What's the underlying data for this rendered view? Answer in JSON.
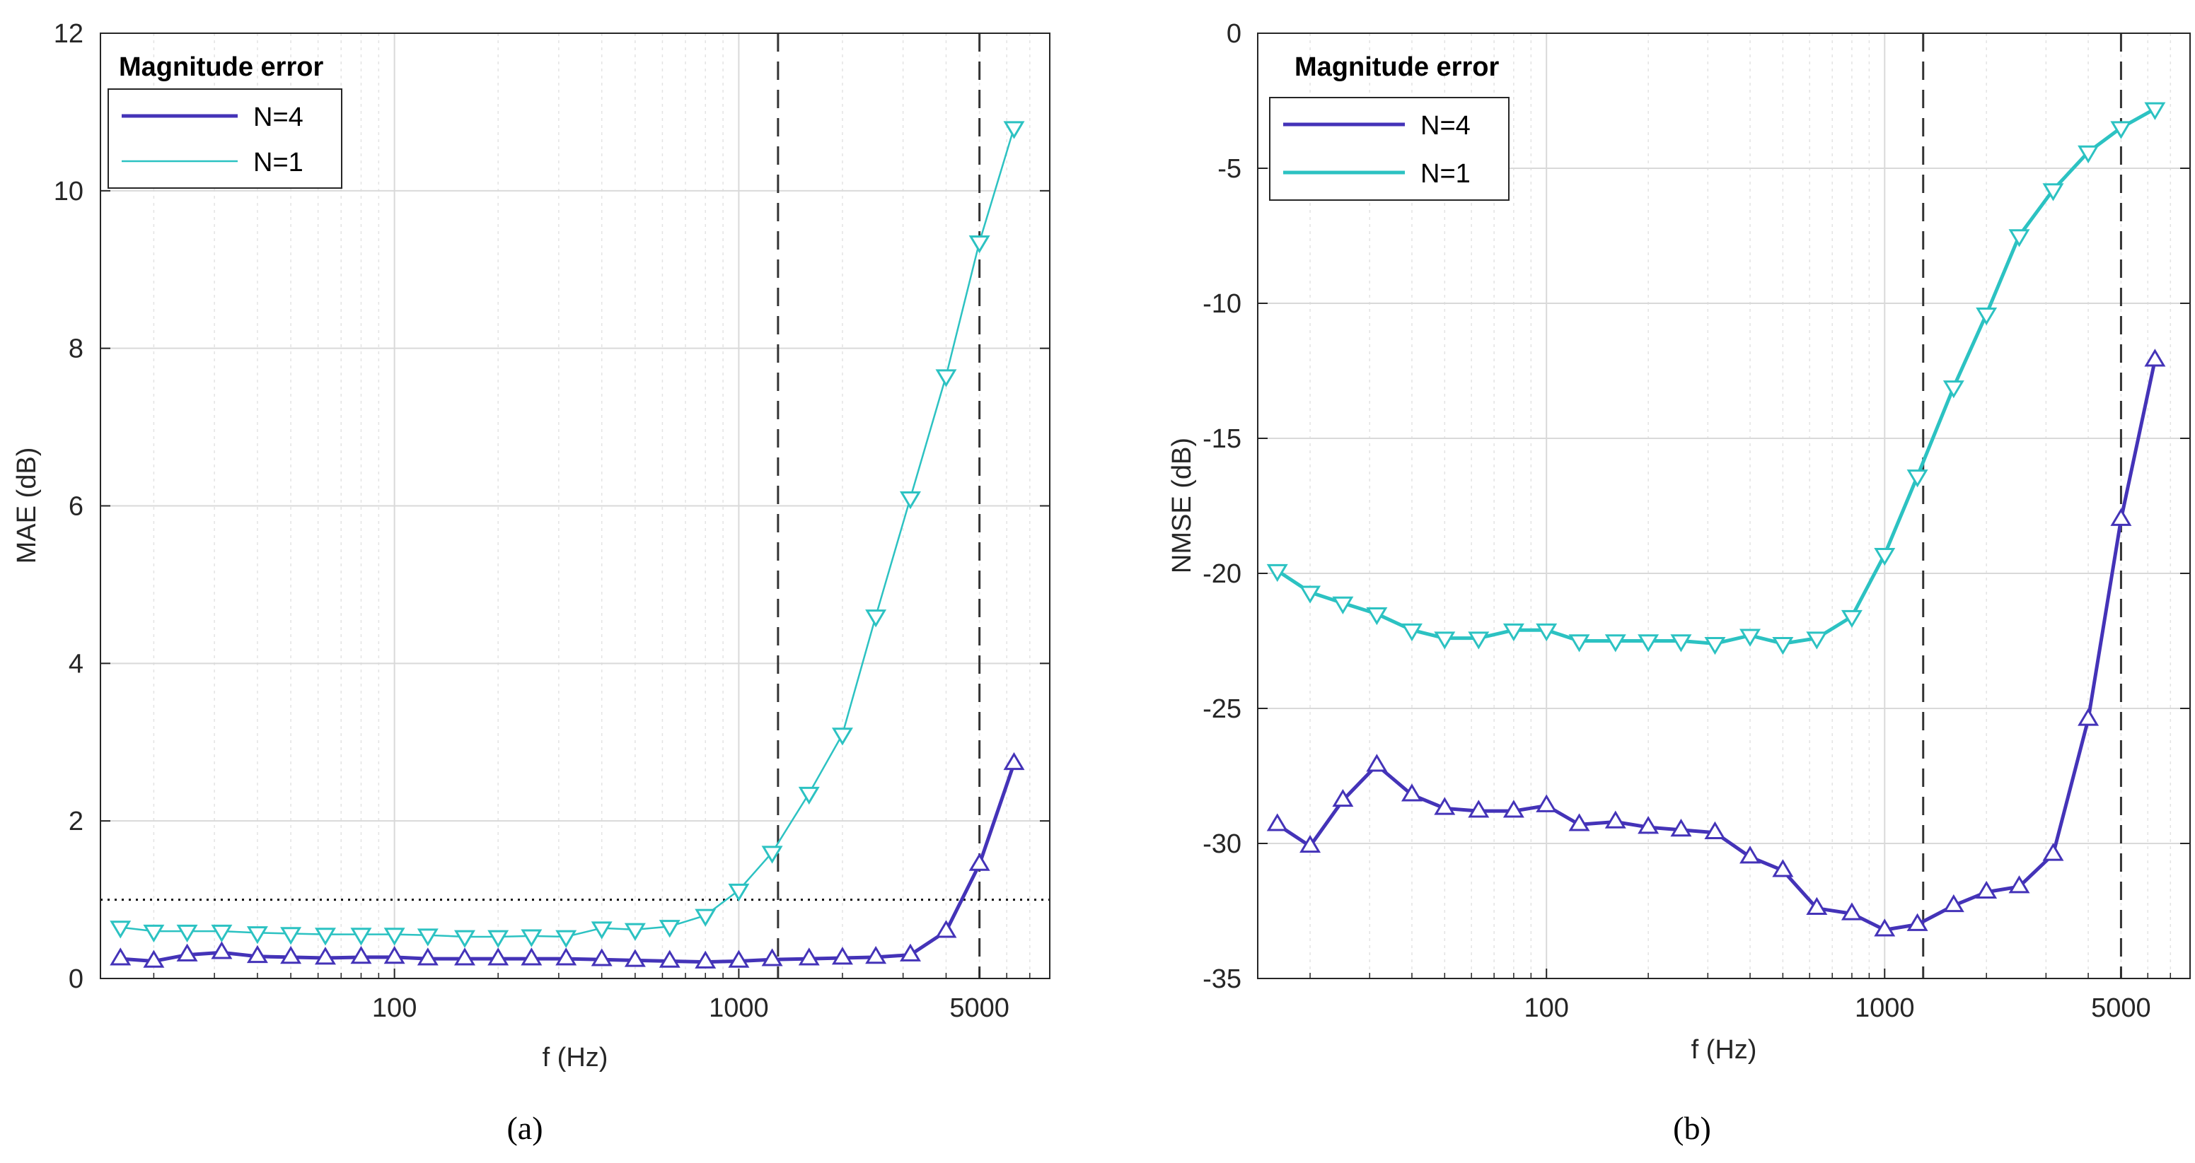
{
  "colors": {
    "n4": "#4433b8",
    "n1": "#2cc2c2",
    "ref_line": "#333333",
    "grid_major": "#d9d9d9",
    "grid_minor": "#e3e3e3",
    "axis": "#262626"
  },
  "chart_data": [
    {
      "type": "line",
      "panel_label": "(a)",
      "legend_title": "Magnitude error",
      "legend_position": "top-left",
      "xlabel": "f (Hz)",
      "ylabel": "MAE (dB)",
      "xscale": "log",
      "xlim": [
        14,
        8000
      ],
      "ylim": [
        0,
        12
      ],
      "xticks": [
        100,
        1000,
        5000
      ],
      "xtick_labels": [
        "100",
        "1000",
        "5000"
      ],
      "yticks": [
        0,
        2,
        4,
        6,
        8,
        10,
        12
      ],
      "ytick_labels": [
        "0",
        "2",
        "4",
        "6",
        "8",
        "10",
        "12"
      ],
      "grid": true,
      "vlines": [
        1300,
        5000
      ],
      "hline": 1,
      "series": [
        {
          "name": "N=4",
          "marker": "triangle-up",
          "x": [
            16,
            20,
            25,
            31.5,
            40,
            50,
            63,
            80,
            100,
            125,
            160,
            200,
            250,
            315,
            400,
            500,
            630,
            800,
            1000,
            1250,
            1600,
            2000,
            2500,
            3150,
            4000,
            5000,
            6300
          ],
          "values": [
            0.25,
            0.22,
            0.3,
            0.33,
            0.28,
            0.27,
            0.26,
            0.27,
            0.27,
            0.25,
            0.25,
            0.25,
            0.25,
            0.25,
            0.24,
            0.23,
            0.22,
            0.21,
            0.22,
            0.24,
            0.25,
            0.26,
            0.27,
            0.3,
            0.6,
            1.45,
            2.73
          ]
        },
        {
          "name": "N=1",
          "marker": "triangle-down",
          "x": [
            16,
            20,
            25,
            31.5,
            40,
            50,
            63,
            80,
            100,
            125,
            160,
            200,
            250,
            315,
            400,
            500,
            630,
            800,
            1000,
            1250,
            1600,
            2000,
            2500,
            3150,
            4000,
            5000,
            6300
          ],
          "values": [
            0.65,
            0.6,
            0.6,
            0.6,
            0.58,
            0.57,
            0.56,
            0.56,
            0.56,
            0.55,
            0.53,
            0.53,
            0.54,
            0.53,
            0.64,
            0.62,
            0.66,
            0.8,
            1.12,
            1.6,
            2.35,
            3.1,
            4.6,
            6.1,
            7.65,
            9.35,
            10.8
          ]
        }
      ]
    },
    {
      "type": "line",
      "panel_label": "(b)",
      "legend_title": "Magnitude error",
      "legend_position": "top-left",
      "xlabel": "f (Hz)",
      "ylabel": "NMSE (dB)",
      "xscale": "log",
      "xlim": [
        14,
        8000
      ],
      "ylim": [
        -35,
        0
      ],
      "xticks": [
        100,
        1000,
        5000
      ],
      "xtick_labels": [
        "100",
        "1000",
        "5000"
      ],
      "yticks": [
        0,
        -5,
        -10,
        -15,
        -20,
        -25,
        -30,
        -35
      ],
      "ytick_labels": [
        "0",
        "-5",
        "-10",
        "-15",
        "-20",
        "-25",
        "-30",
        "-35"
      ],
      "grid": true,
      "vlines": [
        1300,
        5000
      ],
      "series": [
        {
          "name": "N=4",
          "marker": "triangle-up",
          "x": [
            16,
            20,
            25,
            31.5,
            40,
            50,
            63,
            80,
            100,
            125,
            160,
            200,
            250,
            315,
            400,
            500,
            630,
            800,
            1000,
            1250,
            1600,
            2000,
            2500,
            3150,
            4000,
            5000,
            6300
          ],
          "values": [
            -29.3,
            -30.1,
            -28.4,
            -27.1,
            -28.2,
            -28.7,
            -28.8,
            -28.8,
            -28.6,
            -29.3,
            -29.2,
            -29.4,
            -29.5,
            -29.6,
            -30.5,
            -31,
            -32.4,
            -32.6,
            -33.2,
            -33,
            -32.3,
            -31.8,
            -31.6,
            -30.4,
            -25.4,
            -18,
            -12.1
          ]
        },
        {
          "name": "N=1",
          "marker": "triangle-down",
          "x": [
            16,
            20,
            25,
            31.5,
            40,
            50,
            63,
            80,
            100,
            125,
            160,
            200,
            250,
            315,
            400,
            500,
            630,
            800,
            1000,
            1250,
            1600,
            2000,
            2500,
            3150,
            4000,
            5000,
            6300
          ],
          "values": [
            -19.9,
            -20.7,
            -21.1,
            -21.5,
            -22.1,
            -22.4,
            -22.4,
            -22.1,
            -22.1,
            -22.5,
            -22.5,
            -22.5,
            -22.5,
            -22.6,
            -22.3,
            -22.6,
            -22.4,
            -21.6,
            -19.3,
            -16.4,
            -13.1,
            -10.4,
            -7.5,
            -5.8,
            -4.4,
            -3.5,
            -2.8
          ]
        }
      ]
    }
  ]
}
